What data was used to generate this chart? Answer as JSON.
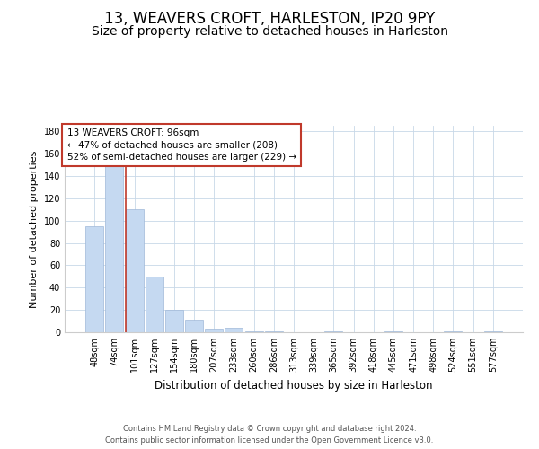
{
  "title": "13, WEAVERS CROFT, HARLESTON, IP20 9PY",
  "subtitle": "Size of property relative to detached houses in Harleston",
  "xlabel": "Distribution of detached houses by size in Harleston",
  "ylabel": "Number of detached properties",
  "categories": [
    "48sqm",
    "74sqm",
    "101sqm",
    "127sqm",
    "154sqm",
    "180sqm",
    "207sqm",
    "233sqm",
    "260sqm",
    "286sqm",
    "313sqm",
    "339sqm",
    "365sqm",
    "392sqm",
    "418sqm",
    "445sqm",
    "471sqm",
    "498sqm",
    "524sqm",
    "551sqm",
    "577sqm"
  ],
  "values": [
    95,
    150,
    110,
    50,
    20,
    11,
    3,
    4,
    1,
    1,
    0,
    0,
    1,
    0,
    0,
    1,
    0,
    0,
    1,
    0,
    1
  ],
  "bar_color": "#c5d9f1",
  "bar_edge_color": "#a0b8d8",
  "vline_x_index": 2,
  "vline_color": "#c0392b",
  "annotation_line1": "13 WEAVERS CROFT: 96sqm",
  "annotation_line2": "← 47% of detached houses are smaller (208)",
  "annotation_line3": "52% of semi-detached houses are larger (229) →",
  "annotation_box_color": "#c0392b",
  "ylim": [
    0,
    185
  ],
  "yticks": [
    0,
    20,
    40,
    60,
    80,
    100,
    120,
    140,
    160,
    180
  ],
  "footer_line1": "Contains HM Land Registry data © Crown copyright and database right 2024.",
  "footer_line2": "Contains public sector information licensed under the Open Government Licence v3.0.",
  "bg_color": "#ffffff",
  "grid_color": "#c8d8e8",
  "title_fontsize": 12,
  "subtitle_fontsize": 10,
  "tick_fontsize": 7,
  "ylabel_fontsize": 8,
  "xlabel_fontsize": 8.5,
  "annotation_fontsize": 7.5,
  "footer_fontsize": 6
}
